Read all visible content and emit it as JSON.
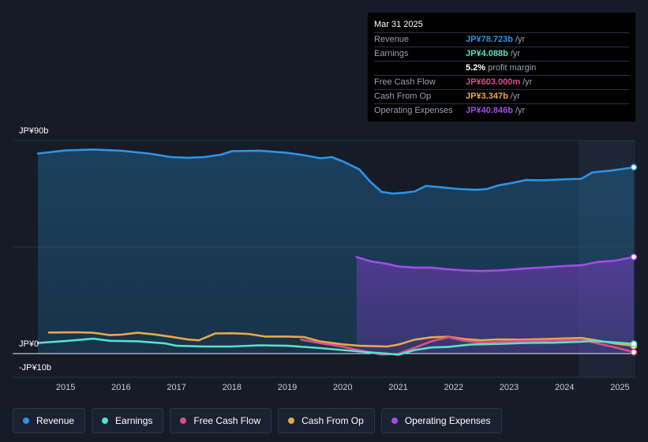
{
  "tooltip": {
    "date": "Mar 31 2025",
    "rows": [
      {
        "label": "Revenue",
        "value": "JP¥78.723b",
        "unit": "/yr",
        "color": "#2e93e6"
      },
      {
        "label": "Earnings",
        "value": "JP¥4.088b",
        "unit": "/yr",
        "color": "#58e0c8"
      },
      {
        "label": "",
        "value": "5.2%",
        "unit": "profit margin",
        "color": "#ffffff"
      },
      {
        "label": "Free Cash Flow",
        "value": "JP¥603.000m",
        "unit": "/yr",
        "color": "#d94f8a"
      },
      {
        "label": "Cash From Op",
        "value": "JP¥3.347b",
        "unit": "/yr",
        "color": "#e8a84a"
      },
      {
        "label": "Operating Expenses",
        "value": "JP¥40.846b",
        "unit": "/yr",
        "color": "#a04ee8"
      }
    ]
  },
  "chart_data": {
    "type": "line",
    "y_labels": {
      "top": "JP¥90b",
      "zero": "JP¥0",
      "bottom": "-JP¥10b"
    },
    "ylim": [
      -10,
      90
    ],
    "x_ticks": [
      "2015",
      "2016",
      "2017",
      "2018",
      "2019",
      "2020",
      "2021",
      "2022",
      "2023",
      "2024",
      "2025"
    ],
    "x_tick_values": [
      2015,
      2016,
      2017,
      2018,
      2019,
      2020,
      2021,
      2022,
      2023,
      2024,
      2025
    ],
    "xlim": [
      2014.0,
      2025.25
    ],
    "forecast_region_start": 2024.25,
    "series": [
      {
        "name": "Revenue",
        "color": "#2e93e6",
        "fill": true,
        "points": [
          [
            2014.5,
            84.5
          ],
          [
            2015.0,
            85.8
          ],
          [
            2015.5,
            86.2
          ],
          [
            2016.0,
            85.7
          ],
          [
            2016.5,
            84.5
          ],
          [
            2016.9,
            83.0
          ],
          [
            2017.2,
            82.7
          ],
          [
            2017.5,
            83.0
          ],
          [
            2017.8,
            84.0
          ],
          [
            2018.0,
            85.5
          ],
          [
            2018.5,
            85.7
          ],
          [
            2019.0,
            84.8
          ],
          [
            2019.3,
            83.8
          ],
          [
            2019.6,
            82.5
          ],
          [
            2019.8,
            83.0
          ],
          [
            2020.0,
            81.2
          ],
          [
            2020.3,
            77.8
          ],
          [
            2020.5,
            72.5
          ],
          [
            2020.7,
            68.3
          ],
          [
            2020.9,
            67.6
          ],
          [
            2021.1,
            67.9
          ],
          [
            2021.3,
            68.5
          ],
          [
            2021.5,
            70.8
          ],
          [
            2021.8,
            70.2
          ],
          [
            2022.1,
            69.5
          ],
          [
            2022.4,
            69.2
          ],
          [
            2022.6,
            69.5
          ],
          [
            2022.8,
            71.0
          ],
          [
            2023.1,
            72.3
          ],
          [
            2023.3,
            73.3
          ],
          [
            2023.6,
            73.2
          ],
          [
            2024.0,
            73.6
          ],
          [
            2024.3,
            73.8
          ],
          [
            2024.5,
            76.5
          ],
          [
            2024.8,
            77.2
          ],
          [
            2025.0,
            77.8
          ],
          [
            2025.25,
            78.7
          ]
        ]
      },
      {
        "name": "Earnings",
        "color": "#58e0c8",
        "fill": false,
        "points": [
          [
            2014.5,
            4.5
          ],
          [
            2015.0,
            5.3
          ],
          [
            2015.5,
            6.3
          ],
          [
            2015.8,
            5.4
          ],
          [
            2016.3,
            5.2
          ],
          [
            2016.8,
            4.3
          ],
          [
            2017.0,
            3.3
          ],
          [
            2017.5,
            3.0
          ],
          [
            2018.0,
            3.0
          ],
          [
            2018.5,
            3.5
          ],
          [
            2019.0,
            3.3
          ],
          [
            2019.5,
            2.5
          ],
          [
            2020.0,
            1.5
          ],
          [
            2020.5,
            0.5
          ],
          [
            2020.8,
            0.0
          ],
          [
            2021.0,
            -0.5
          ],
          [
            2021.3,
            1.5
          ],
          [
            2021.6,
            2.6
          ],
          [
            2021.9,
            2.8
          ],
          [
            2022.3,
            3.8
          ],
          [
            2022.8,
            4.1
          ],
          [
            2023.3,
            4.5
          ],
          [
            2023.8,
            4.6
          ],
          [
            2024.3,
            5.0
          ],
          [
            2024.5,
            5.3
          ],
          [
            2024.8,
            4.9
          ],
          [
            2025.25,
            4.1
          ]
        ]
      },
      {
        "name": "Free Cash Flow",
        "color": "#d94f8a",
        "fill": false,
        "points": [
          [
            2019.25,
            5.9
          ],
          [
            2019.6,
            4.4
          ],
          [
            2020.0,
            2.9
          ],
          [
            2020.4,
            0.9
          ],
          [
            2020.7,
            -0.4
          ],
          [
            2021.0,
            -0.1
          ],
          [
            2021.3,
            2.5
          ],
          [
            2021.6,
            5.2
          ],
          [
            2021.9,
            6.9
          ],
          [
            2022.2,
            5.4
          ],
          [
            2022.5,
            4.6
          ],
          [
            2022.8,
            5.0
          ],
          [
            2023.2,
            5.3
          ],
          [
            2023.6,
            5.4
          ],
          [
            2024.0,
            5.7
          ],
          [
            2024.3,
            5.9
          ],
          [
            2024.6,
            4.3
          ],
          [
            2024.9,
            2.7
          ],
          [
            2025.25,
            0.6
          ]
        ]
      },
      {
        "name": "Cash From Op",
        "color": "#e8a84a",
        "fill": false,
        "points": [
          [
            2014.7,
            8.9
          ],
          [
            2015.2,
            9.0
          ],
          [
            2015.5,
            8.8
          ],
          [
            2015.8,
            7.8
          ],
          [
            2016.0,
            8.0
          ],
          [
            2016.3,
            8.8
          ],
          [
            2016.6,
            8.1
          ],
          [
            2016.9,
            7.1
          ],
          [
            2017.2,
            6.0
          ],
          [
            2017.4,
            5.6
          ],
          [
            2017.7,
            8.5
          ],
          [
            2018.0,
            8.6
          ],
          [
            2018.3,
            8.3
          ],
          [
            2018.6,
            7.2
          ],
          [
            2019.0,
            7.2
          ],
          [
            2019.3,
            7.0
          ],
          [
            2019.6,
            5.1
          ],
          [
            2020.0,
            3.9
          ],
          [
            2020.3,
            3.3
          ],
          [
            2020.8,
            3.0
          ],
          [
            2021.0,
            3.8
          ],
          [
            2021.3,
            5.9
          ],
          [
            2021.6,
            6.9
          ],
          [
            2021.9,
            7.1
          ],
          [
            2022.2,
            6.1
          ],
          [
            2022.5,
            5.6
          ],
          [
            2022.8,
            6.0
          ],
          [
            2023.2,
            5.9
          ],
          [
            2023.6,
            6.1
          ],
          [
            2024.0,
            6.4
          ],
          [
            2024.3,
            6.6
          ],
          [
            2024.6,
            5.5
          ],
          [
            2024.9,
            4.3
          ],
          [
            2025.25,
            3.3
          ]
        ]
      },
      {
        "name": "Operating Expenses",
        "color": "#a04ee8",
        "fill": true,
        "points": [
          [
            2020.25,
            40.8
          ],
          [
            2020.5,
            39.0
          ],
          [
            2020.8,
            37.9
          ],
          [
            2021.0,
            36.8
          ],
          [
            2021.3,
            36.3
          ],
          [
            2021.6,
            36.3
          ],
          [
            2021.9,
            35.6
          ],
          [
            2022.2,
            35.1
          ],
          [
            2022.5,
            34.9
          ],
          [
            2022.8,
            35.1
          ],
          [
            2023.1,
            35.6
          ],
          [
            2023.4,
            36.1
          ],
          [
            2023.7,
            36.5
          ],
          [
            2024.0,
            37.0
          ],
          [
            2024.3,
            37.3
          ],
          [
            2024.6,
            38.7
          ],
          [
            2024.9,
            39.2
          ],
          [
            2025.25,
            40.8
          ]
        ]
      }
    ]
  },
  "legend": [
    {
      "label": "Revenue",
      "color": "#2e93e6"
    },
    {
      "label": "Earnings",
      "color": "#58e0c8"
    },
    {
      "label": "Free Cash Flow",
      "color": "#d94f8a"
    },
    {
      "label": "Cash From Op",
      "color": "#e8a84a"
    },
    {
      "label": "Operating Expenses",
      "color": "#a04ee8"
    }
  ]
}
